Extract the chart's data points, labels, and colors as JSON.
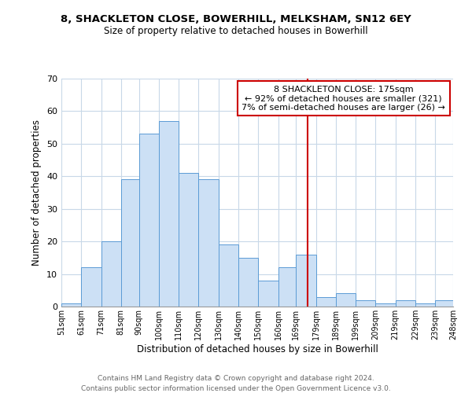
{
  "title1": "8, SHACKLETON CLOSE, BOWERHILL, MELKSHAM, SN12 6EY",
  "title2": "Size of property relative to detached houses in Bowerhill",
  "xlabel": "Distribution of detached houses by size in Bowerhill",
  "ylabel": "Number of detached properties",
  "bar_labels": [
    "51sqm",
    "61sqm",
    "71sqm",
    "81sqm",
    "90sqm",
    "100sqm",
    "110sqm",
    "120sqm",
    "130sqm",
    "140sqm",
    "150sqm",
    "160sqm",
    "169sqm",
    "179sqm",
    "189sqm",
    "199sqm",
    "209sqm",
    "219sqm",
    "229sqm",
    "239sqm",
    "248sqm"
  ],
  "bin_edges": [
    51,
    61,
    71,
    81,
    90,
    100,
    110,
    120,
    130,
    140,
    150,
    160,
    169,
    179,
    189,
    199,
    209,
    219,
    229,
    239,
    248
  ],
  "bar_heights": [
    1,
    12,
    20,
    39,
    53,
    57,
    41,
    39,
    19,
    15,
    8,
    12,
    16,
    3,
    4,
    2,
    1,
    2,
    1,
    2
  ],
  "bar_color": "#cce0f5",
  "bar_edge_color": "#5b9bd5",
  "property_line_x": 175,
  "property_line_color": "#cc0000",
  "annotation_title": "8 SHACKLETON CLOSE: 175sqm",
  "annotation_line1": "← 92% of detached houses are smaller (321)",
  "annotation_line2": "7% of semi-detached houses are larger (26) →",
  "annotation_box_color": "#ffffff",
  "annotation_box_edge": "#cc0000",
  "ylim": [
    0,
    70
  ],
  "yticks": [
    0,
    10,
    20,
    30,
    40,
    50,
    60,
    70
  ],
  "footer1": "Contains HM Land Registry data © Crown copyright and database right 2024.",
  "footer2": "Contains public sector information licensed under the Open Government Licence v3.0.",
  "bg_color": "#ffffff",
  "grid_color": "#c8d8e8"
}
